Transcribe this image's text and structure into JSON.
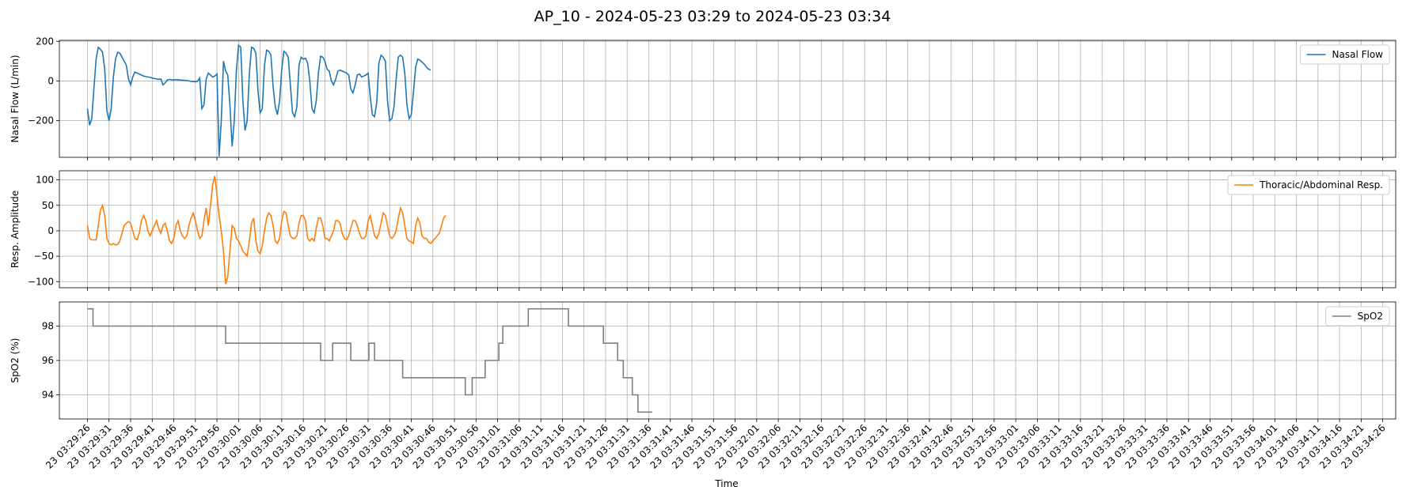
{
  "figure_title": "AP_10 - 2024-05-23 03:29 to 2024-05-23 03:34",
  "x_label": "Time",
  "colors": {
    "nasal": "#1f77b4",
    "resp": "#ff7f0e",
    "spo2": "#7f7f7f"
  },
  "chart_data": [
    {
      "type": "line",
      "name": "nasal-flow",
      "legend": "Nasal Flow",
      "ylabel": "Nasal Flow (L/min)",
      "color": "#1f77b4",
      "ylim": [
        -385,
        205
      ],
      "yticks": [
        -200,
        0,
        200
      ],
      "ytick_labels": [
        "−200",
        "0",
        "200"
      ],
      "x_start_s": 0,
      "dt_s": 0.5,
      "values": [
        -140,
        -223,
        -190,
        -40,
        110,
        170,
        160,
        145,
        60,
        -150,
        -200,
        -140,
        20,
        110,
        145,
        140,
        120,
        100,
        80,
        10,
        -20,
        20,
        45,
        40,
        35,
        30,
        25,
        22,
        20,
        18,
        15,
        12,
        10,
        8,
        10,
        -20,
        -10,
        5,
        8,
        6,
        5,
        7,
        6,
        5,
        4,
        3,
        2,
        0,
        -2,
        -3,
        -4,
        -2,
        15,
        -140,
        -120,
        10,
        40,
        30,
        20,
        25,
        35,
        -380,
        -200,
        100,
        50,
        30,
        -120,
        -330,
        -200,
        50,
        180,
        170,
        -100,
        -250,
        -200,
        40,
        170,
        165,
        140,
        -50,
        -160,
        -140,
        80,
        155,
        150,
        130,
        -30,
        -130,
        -170,
        -100,
        60,
        150,
        140,
        120,
        -20,
        -160,
        -180,
        -130,
        80,
        120,
        110,
        115,
        90,
        0,
        -140,
        -160,
        -100,
        40,
        125,
        120,
        100,
        60,
        50,
        0,
        -20,
        10,
        50,
        55,
        50,
        45,
        40,
        30,
        -40,
        -60,
        -20,
        30,
        35,
        20,
        25,
        30,
        40,
        -80,
        -170,
        -180,
        -110,
        90,
        130,
        120,
        100,
        -100,
        -200,
        -190,
        -130,
        10,
        120,
        130,
        120,
        40,
        -120,
        -190,
        -170,
        -60,
        70,
        110,
        105,
        95,
        85,
        70,
        60,
        55
      ]
    },
    {
      "type": "line",
      "name": "resp-amplitude",
      "legend": "Thoracic/Abdominal Resp.",
      "ylabel": "Resp. Amplitude",
      "color": "#ff7f0e",
      "ylim": [
        -112,
        118
      ],
      "yticks": [
        -100,
        -50,
        0,
        50,
        100
      ],
      "ytick_labels": [
        "−100",
        "−50",
        "0",
        "50",
        "100"
      ],
      "x_start_s": 0,
      "dt_s": 0.5,
      "values": [
        10,
        -15,
        -18,
        -18,
        -18,
        10,
        40,
        50,
        30,
        -15,
        -25,
        -28,
        -25,
        -28,
        -27,
        -20,
        -5,
        10,
        15,
        18,
        15,
        0,
        -15,
        -18,
        -5,
        20,
        30,
        20,
        0,
        -10,
        0,
        10,
        20,
        5,
        -5,
        10,
        15,
        0,
        -20,
        -25,
        -15,
        10,
        20,
        0,
        -10,
        -15,
        -10,
        10,
        25,
        35,
        20,
        0,
        -15,
        -10,
        20,
        45,
        10,
        50,
        90,
        108,
        70,
        30,
        0,
        -40,
        -105,
        -90,
        -40,
        10,
        5,
        -15,
        -20,
        -30,
        -40,
        -45,
        -50,
        -20,
        15,
        25,
        -20,
        -40,
        -45,
        -30,
        0,
        25,
        35,
        30,
        10,
        -20,
        -25,
        -15,
        20,
        38,
        35,
        10,
        -10,
        -15,
        -15,
        -10,
        15,
        30,
        30,
        20,
        -15,
        -20,
        -15,
        -20,
        5,
        25,
        25,
        10,
        -15,
        -15,
        -20,
        -10,
        0,
        20,
        20,
        15,
        -5,
        -15,
        -18,
        -10,
        5,
        20,
        20,
        10,
        -5,
        -15,
        -15,
        -10,
        20,
        30,
        10,
        -10,
        -15,
        -5,
        15,
        35,
        30,
        10,
        -10,
        -15,
        -10,
        0,
        25,
        45,
        35,
        10,
        -15,
        -20,
        -22,
        -25,
        10,
        25,
        15,
        -10,
        -15,
        -15,
        -22,
        -25,
        -20,
        -15,
        -10,
        -5,
        10,
        25,
        30
      ]
    },
    {
      "type": "line",
      "name": "spo2",
      "legend": "SpO2",
      "ylabel": "SpO2 (%)",
      "color": "#7f7f7f",
      "ylim": [
        92.6,
        99.4
      ],
      "yticks": [
        94,
        96,
        98
      ],
      "ytick_labels": [
        "94",
        "96",
        "98"
      ],
      "steps": [
        [
          0,
          99
        ],
        [
          1.3,
          98
        ],
        [
          32,
          97
        ],
        [
          54,
          96
        ],
        [
          56.8,
          97
        ],
        [
          61,
          96
        ],
        [
          65.2,
          97
        ],
        [
          66.5,
          96
        ],
        [
          73,
          95
        ],
        [
          87.5,
          94
        ],
        [
          89.1,
          95
        ],
        [
          92.1,
          96
        ],
        [
          95.3,
          97
        ],
        [
          96.2,
          98
        ],
        [
          102.1,
          99
        ],
        [
          111.4,
          98
        ],
        [
          119.5,
          97
        ],
        [
          122.8,
          96
        ],
        [
          124.1,
          95
        ],
        [
          126.2,
          94
        ],
        [
          127.5,
          93
        ],
        [
          130.8,
          93
        ]
      ]
    }
  ],
  "x_axis": {
    "tick_start_s": 0,
    "tick_step_s": 5,
    "x_min_s": -6.5,
    "x_max_s": 303,
    "tick_labels": [
      "23 03:29:26",
      "23 03:29:31",
      "23 03:29:36",
      "23 03:29:41",
      "23 03:29:46",
      "23 03:29:51",
      "23 03:29:56",
      "23 03:30:01",
      "23 03:30:06",
      "23 03:30:11",
      "23 03:30:16",
      "23 03:30:21",
      "23 03:30:26",
      "23 03:30:31",
      "23 03:30:36",
      "23 03:30:41",
      "23 03:30:46",
      "23 03:30:51",
      "23 03:30:56",
      "23 03:31:01",
      "23 03:31:06",
      "23 03:31:11",
      "23 03:31:16",
      "23 03:31:21",
      "23 03:31:26",
      "23 03:31:31",
      "23 03:31:36",
      "23 03:31:41",
      "23 03:31:46",
      "23 03:31:51",
      "23 03:31:56",
      "23 03:32:01",
      "23 03:32:06",
      "23 03:32:11",
      "23 03:32:16",
      "23 03:32:21",
      "23 03:32:26",
      "23 03:32:31",
      "23 03:32:36",
      "23 03:32:41",
      "23 03:32:46",
      "23 03:32:51",
      "23 03:32:56",
      "23 03:33:01",
      "23 03:33:06",
      "23 03:33:11",
      "23 03:33:16",
      "23 03:33:21",
      "23 03:33:26",
      "23 03:33:31",
      "23 03:33:36",
      "23 03:33:41",
      "23 03:33:46",
      "23 03:33:51",
      "23 03:33:56",
      "23 03:34:01",
      "23 03:34:06",
      "23 03:34:11",
      "23 03:34:16",
      "23 03:34:21",
      "23 03:34:26"
    ]
  }
}
